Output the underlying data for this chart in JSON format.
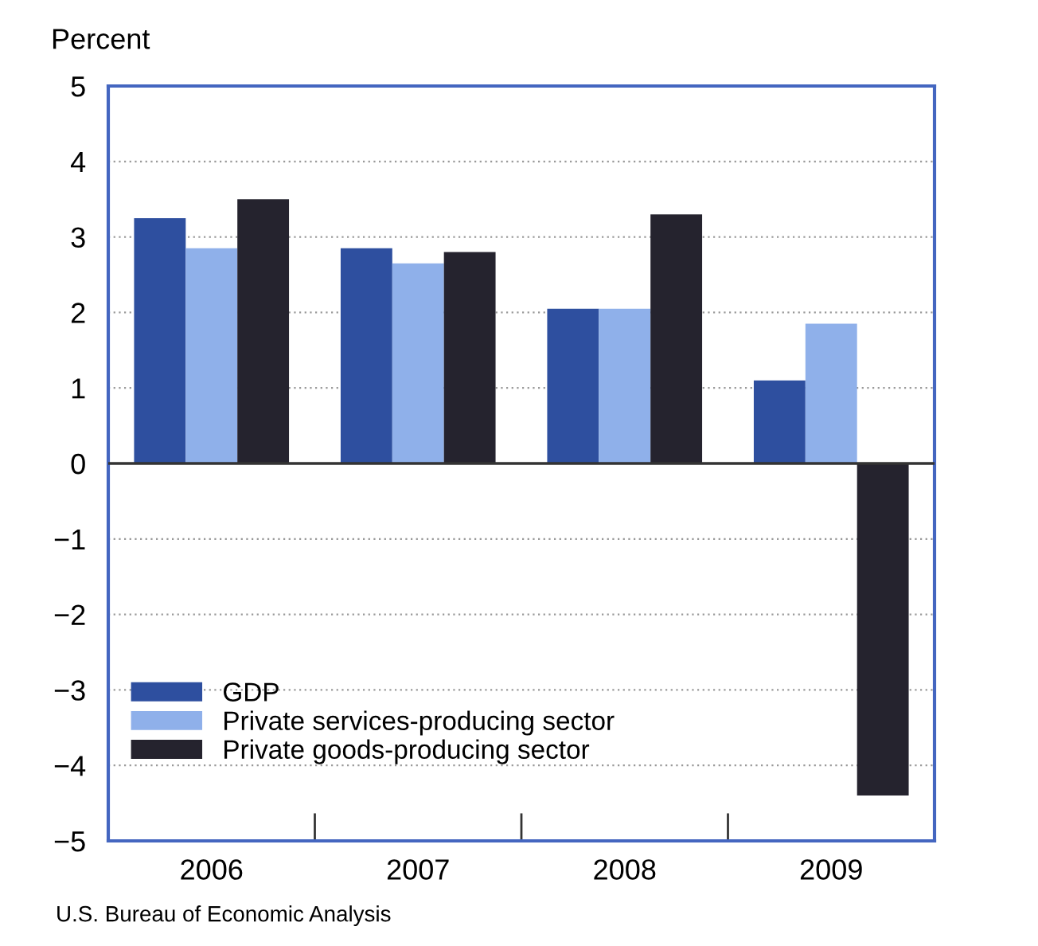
{
  "chart_data": {
    "type": "bar",
    "ylabel": "Percent",
    "categories": [
      "2006",
      "2007",
      "2008",
      "2009"
    ],
    "series": [
      {
        "name": "GDP",
        "color": "#2e4f9f",
        "values": [
          3.25,
          2.85,
          2.05,
          1.1
        ]
      },
      {
        "name": "Private services-producing sector",
        "color": "#8fb0ea",
        "values": [
          2.85,
          2.65,
          2.05,
          1.85
        ]
      },
      {
        "name": "Private goods-producing sector",
        "color": "#25232e",
        "values": [
          3.5,
          2.8,
          3.3,
          -4.4
        ]
      }
    ],
    "ylim": [
      -5,
      5
    ],
    "yticks": [
      {
        "value": -5,
        "label": "−5"
      },
      {
        "value": -4,
        "label": "−4"
      },
      {
        "value": -3,
        "label": "−3"
      },
      {
        "value": -2,
        "label": "−2"
      },
      {
        "value": -1,
        "label": "−1"
      },
      0,
      1,
      2,
      3,
      4,
      5
    ],
    "ref_lines": [
      {
        "axis": "y",
        "value": 0,
        "color": "#333333"
      }
    ],
    "grid": "y",
    "legend": "bottom left",
    "annotations": [
      "U.S. Bureau of Economic Analysis"
    ]
  }
}
